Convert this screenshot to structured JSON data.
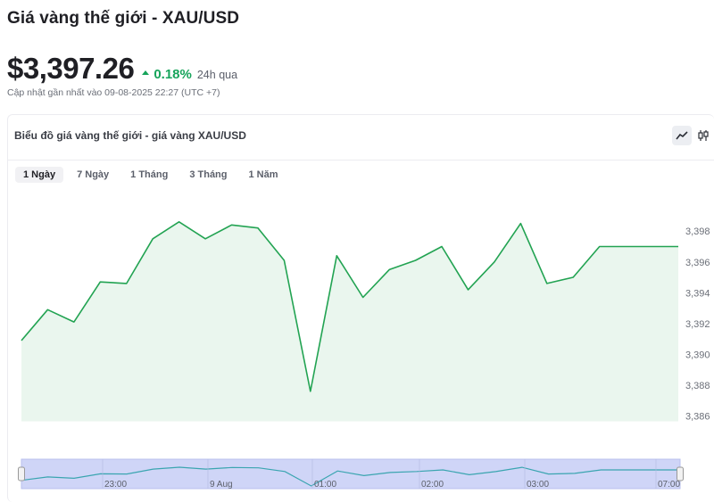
{
  "header": {
    "title": "Giá vàng thế giới - XAU/USD",
    "price": "$3,397.26",
    "change_pct": "0.18%",
    "change_period": "24h qua",
    "updated": "Cập nhật gần nhất vào 09-08-2025 22:27 (UTC +7)"
  },
  "card": {
    "title": "Biểu đồ giá vàng thế giới - giá vàng XAU/USD",
    "tools": [
      {
        "name": "line-chart-icon",
        "active": true
      },
      {
        "name": "candlestick-chart-icon",
        "active": false
      }
    ]
  },
  "tabs": [
    {
      "label": "1 Ngày",
      "active": true
    },
    {
      "label": "7 Ngày",
      "active": false
    },
    {
      "label": "1 Tháng",
      "active": false
    },
    {
      "label": "3 Tháng",
      "active": false
    },
    {
      "label": "1 Năm",
      "active": false
    }
  ],
  "colors": {
    "line": "#22a352",
    "area": "#eaf6ee",
    "positive": "#17a45b",
    "navigator_fill": "#cfd5f7",
    "navigator_line": "#3aa5b0"
  },
  "chart_data": {
    "type": "area",
    "title": "",
    "xlabel": "",
    "ylabel": "",
    "ylim": [
      3385.8,
      3399.4
    ],
    "yticks": [
      3386,
      3388,
      3390,
      3392,
      3394,
      3396,
      3398
    ],
    "ytick_labels": [
      "3,386",
      "3,388",
      "3,390",
      "3,392",
      "3,394",
      "3,396",
      "3,398"
    ],
    "series": [
      {
        "values": [
          3390.9,
          3392.9,
          3392.1,
          3394.7,
          3394.6,
          3397.5,
          3398.6,
          3397.5,
          3398.4,
          3398.2,
          3396.1,
          3387.6,
          3396.4,
          3393.7,
          3395.5,
          3396.1,
          3397.0,
          3394.2,
          3396.0,
          3398.5,
          3394.6,
          3395.0,
          3397.0,
          3397.0,
          3397.0,
          3397.0
        ]
      }
    ],
    "navigator": {
      "xtick_labels": [
        "23:00",
        "9 Aug",
        "01:00",
        "02:00",
        "03:00",
        "07:00"
      ]
    }
  }
}
